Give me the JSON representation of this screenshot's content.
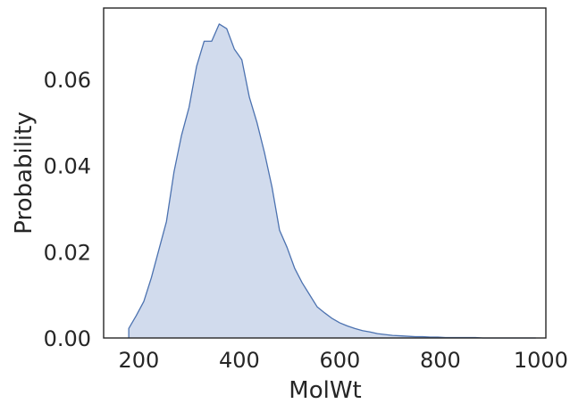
{
  "chart_data": {
    "type": "area",
    "title": "",
    "xlabel": "MolWt",
    "ylabel": "Probability",
    "xlim": [
      130,
      1010
    ],
    "ylim": [
      0,
      0.0765
    ],
    "xticks": [
      200,
      400,
      600,
      800,
      1000
    ],
    "yticks": [
      0.0,
      0.02,
      0.04,
      0.06
    ],
    "ytick_labels": [
      "0.00",
      "0.02",
      "0.04",
      "0.06"
    ],
    "grid": false,
    "legend": "none",
    "series": [
      {
        "fill_color": "#d1dbed",
        "line_color": "#4c72b0",
        "x": [
          180,
          180,
          195,
          210,
          225,
          240,
          255,
          270,
          285,
          300,
          315,
          330,
          345,
          360,
          375,
          390,
          405,
          420,
          435,
          450,
          465,
          480,
          495,
          510,
          525,
          540,
          555,
          570,
          585,
          600,
          615,
          630,
          645,
          660,
          675,
          690,
          705,
          720,
          735,
          750,
          765,
          780,
          795,
          810,
          825,
          840,
          855,
          870,
          885,
          900,
          915,
          930,
          945,
          960,
          975,
          990,
          990
        ],
        "y": [
          0,
          0.0022,
          0.0052,
          0.0085,
          0.014,
          0.0205,
          0.027,
          0.0385,
          0.047,
          0.0535,
          0.063,
          0.0688,
          0.0688,
          0.0728,
          0.0717,
          0.067,
          0.0645,
          0.0558,
          0.05,
          0.043,
          0.035,
          0.025,
          0.021,
          0.0162,
          0.0128,
          0.01,
          0.0072,
          0.0058,
          0.0045,
          0.0035,
          0.0028,
          0.0022,
          0.0017,
          0.0014,
          0.001,
          0.0008,
          0.0006,
          0.0005,
          0.0004,
          0.0003,
          0.0003,
          0.0002,
          0.0002,
          0.0001,
          0.0001,
          0.0001,
          0.0001,
          0.0001,
          0,
          0,
          0,
          0,
          0,
          0,
          0,
          0,
          0
        ]
      }
    ]
  }
}
